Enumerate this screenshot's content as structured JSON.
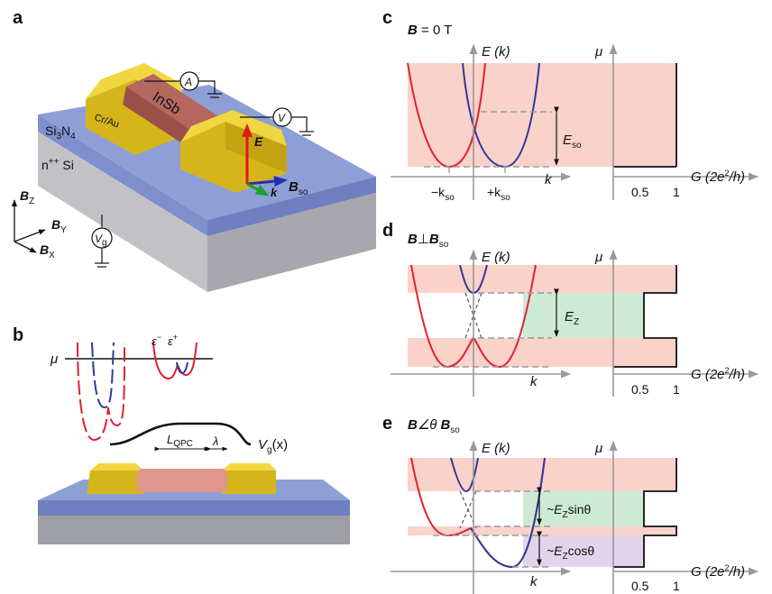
{
  "colors": {
    "pink": "#f9d2ca",
    "green": "#cdebd4",
    "purple": "#e2d4ec",
    "red_band": "#e0303a",
    "blue_band": "#2f3a98",
    "gold": "#e3c521",
    "insb": "#b5675f",
    "substrate_top": "#8e9fd6",
    "substrate_side": "#c9c9cd"
  },
  "panels": {
    "a": {
      "letter": "a",
      "contact_label": "Cr/Au",
      "wire_label": "InSb",
      "ammeter": "A",
      "voltmeter": "V",
      "layer1": "Si",
      "layer1_sub_a": "3",
      "layer1_mid": "N",
      "layer1_sub_b": "4",
      "layer2": "n",
      "layer2_sup": "++",
      "layer2_tail": " Si",
      "gate_v": "V",
      "gate_sub": "g",
      "efield": "E",
      "k": "k",
      "bso": "B",
      "bso_sub": "so",
      "bz": "B",
      "bz_sub": "Z",
      "by": "B",
      "by_sub": "Y",
      "bx": "B",
      "bx_sub": "X"
    },
    "b": {
      "letter": "b",
      "mu": "μ",
      "eps_minus": "ε",
      "eps_minus_sup": "−",
      "eps_plus": "ε",
      "eps_plus_sup": "+",
      "lqpc": "L",
      "lqpc_sub": "QPC",
      "lambda": "λ",
      "vg": "V",
      "vg_sub": "g",
      "vg_arg": "(x)"
    },
    "c": {
      "letter": "c",
      "title_b": "B",
      "title_rest": " = 0 T",
      "energy_axis": "E (k)",
      "mu": "μ",
      "k_axis": "k",
      "eso": "E",
      "eso_sub": "so",
      "kso_minus": "−k",
      "kso_plus": "+k",
      "kso_sub": "so",
      "g_axis_pre": "G (2e",
      "g_axis_sup": "2",
      "g_axis_post": "/h)",
      "g_ticks": [
        "0.5",
        "1"
      ]
    },
    "d": {
      "letter": "d",
      "title_b1": "B",
      "title_perp": "⊥",
      "title_b2": "B",
      "title_sub": "so",
      "energy_axis": "E (k)",
      "mu": "μ",
      "k_axis": "k",
      "ez": "E",
      "ez_sub": "Z",
      "g_axis_pre": "G (2e",
      "g_axis_sup": "2",
      "g_axis_post": "/h)",
      "g_ticks": [
        "0.5",
        "1"
      ]
    },
    "e": {
      "letter": "e",
      "title_b1": "B",
      "title_angle": "∠θ",
      "title_b2": "B",
      "title_sub": "so",
      "energy_axis": "E (k)",
      "mu": "μ",
      "k_axis": "k",
      "upper_pre": "~E",
      "upper_sub": "Z",
      "upper_post": "sinθ",
      "lower_pre": "~E",
      "lower_sub": "Z",
      "lower_post": "cosθ",
      "g_axis_pre": "G (2e",
      "g_axis_sup": "2",
      "g_axis_post": "/h)",
      "g_ticks": [
        "0.5",
        "1"
      ]
    }
  }
}
